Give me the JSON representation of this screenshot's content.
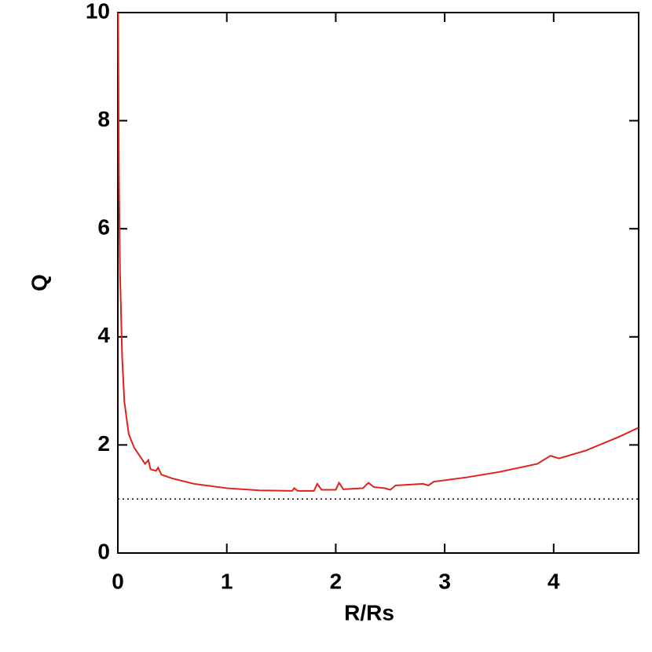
{
  "chart_data": {
    "type": "line",
    "xlabel": "R/Rs",
    "ylabel": "Q",
    "x": [
      0.003,
      0.01,
      0.02,
      0.04,
      0.06,
      0.1,
      0.15,
      0.2,
      0.25,
      0.28,
      0.3,
      0.35,
      0.37,
      0.4,
      0.5,
      0.7,
      1.0,
      1.3,
      1.6,
      1.62,
      1.65,
      1.8,
      1.83,
      1.87,
      2.0,
      2.03,
      2.07,
      2.25,
      2.3,
      2.35,
      2.45,
      2.5,
      2.55,
      2.8,
      2.85,
      2.9,
      3.2,
      3.5,
      3.85,
      3.97,
      4.05,
      4.3,
      4.6,
      4.78
    ],
    "values": [
      10,
      7,
      5.2,
      3.6,
      2.8,
      2.2,
      1.95,
      1.8,
      1.65,
      1.72,
      1.55,
      1.52,
      1.58,
      1.45,
      1.38,
      1.28,
      1.2,
      1.16,
      1.15,
      1.2,
      1.15,
      1.15,
      1.28,
      1.17,
      1.17,
      1.3,
      1.18,
      1.2,
      1.3,
      1.22,
      1.2,
      1.17,
      1.25,
      1.28,
      1.25,
      1.32,
      1.4,
      1.5,
      1.65,
      1.8,
      1.75,
      1.9,
      2.15,
      2.32
    ],
    "color": "#e0201b",
    "hline": 1,
    "xlim": [
      0,
      4.78
    ],
    "xticks": [
      0,
      1,
      2,
      3,
      4
    ],
    "ylim": [
      0,
      10
    ],
    "yticks": [
      0,
      2,
      4,
      6,
      8,
      10
    ]
  }
}
